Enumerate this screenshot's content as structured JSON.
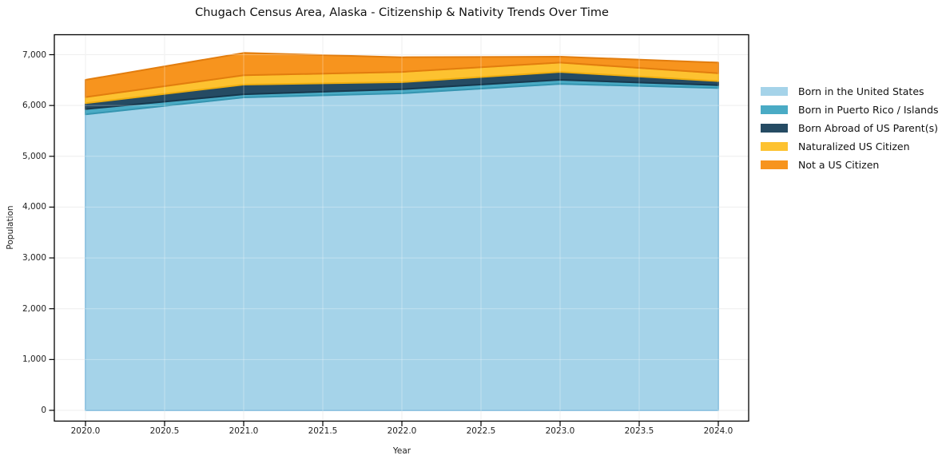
{
  "chart_data": {
    "type": "area",
    "stacked": true,
    "title": "Chugach Census Area, Alaska - Citizenship & Nativity Trends Over Time",
    "xlabel": "Year",
    "ylabel": "Population",
    "grid": true,
    "legend_position": "right-outside",
    "x": [
      2020,
      2021,
      2022,
      2023,
      2024
    ],
    "x_tick_labels": [
      "2020.0",
      "2020.5",
      "2021.0",
      "2021.5",
      "2022.0",
      "2022.5",
      "2023.0",
      "2023.5",
      "2024.0"
    ],
    "y_ticks": [
      0,
      1000,
      2000,
      3000,
      4000,
      5000,
      6000,
      7000
    ],
    "y_tick_labels": [
      "0",
      "1,000",
      "2,000",
      "3,000",
      "4,000",
      "5,000",
      "6,000",
      "7,000"
    ],
    "xlim": [
      2019.8,
      2024.2
    ],
    "ylim": [
      -220,
      7380
    ],
    "series": [
      {
        "name": "Born in the United States",
        "color": "#a5d3e9",
        "edge": "#7fbcdc",
        "values": [
          5825,
          6160,
          6240,
          6425,
          6345
        ]
      },
      {
        "name": "Born in Puerto Rico / Islands",
        "color": "#4aabc5",
        "edge": "#3595b0",
        "values": [
          105,
          60,
          80,
          80,
          55
        ]
      },
      {
        "name": "Born Abroad of US Parent(s)",
        "color": "#254b63",
        "edge": "#17384d",
        "values": [
          115,
          190,
          140,
          155,
          80
        ]
      },
      {
        "name": "Naturalized US Citizen",
        "color": "#fdc230",
        "edge": "#efae10",
        "values": [
          120,
          185,
          200,
          185,
          155
        ]
      },
      {
        "name": "Not a US Citizen",
        "color": "#f7941e",
        "edge": "#e27d0e",
        "values": [
          340,
          440,
          290,
          115,
          210
        ]
      }
    ],
    "colors": {
      "grid": "#e8e8e8",
      "grid_over_area": "rgba(255,255,255,0.32)",
      "spine": "#000000",
      "background": "#ffffff"
    }
  }
}
